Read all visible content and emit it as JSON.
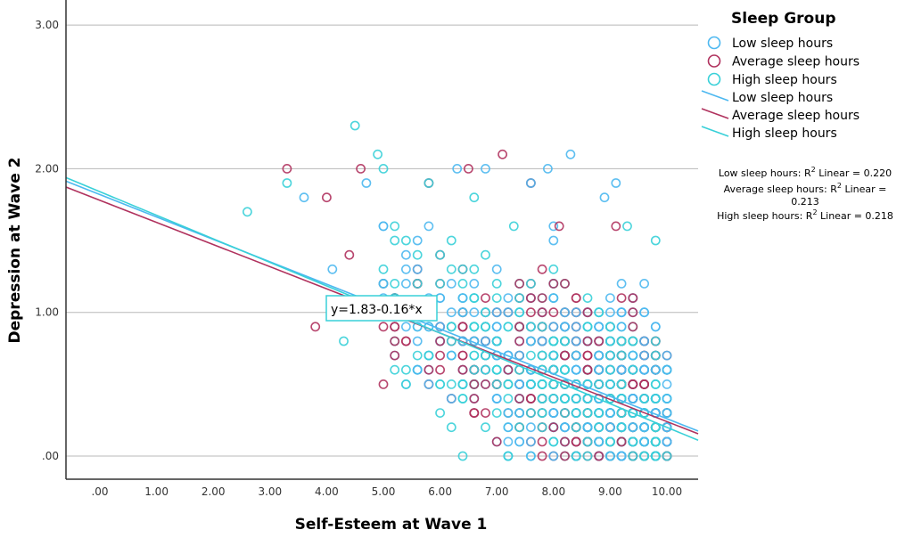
{
  "chart_data": {
    "type": "scatter",
    "title": "",
    "xlabel": "Self-Esteem at Wave 1",
    "ylabel": "Depression at Wave 2",
    "xlim": [
      -0.6,
      10.4
    ],
    "ylim": [
      -0.16,
      3.17
    ],
    "x_ticks": [
      0,
      1,
      2,
      3,
      4,
      5,
      6,
      7,
      8,
      9,
      10
    ],
    "x_tick_labels": [
      ".00",
      "1.00",
      "2.00",
      "3.00",
      "4.00",
      "5.00",
      "6.00",
      "7.00",
      "8.00",
      "9.00",
      "10.00"
    ],
    "y_ticks": [
      0,
      1,
      2,
      3
    ],
    "y_tick_labels": [
      ".00",
      "1.00",
      "2.00",
      "3.00"
    ],
    "grid": "horizontal",
    "legend": {
      "title": "Sleep Group",
      "placement": "right",
      "marker_entries": [
        "Low sleep hours",
        "Average sleep hours",
        "High sleep hours"
      ],
      "line_entries": [
        "Low sleep hours",
        "Average sleep hours",
        "High sleep hours"
      ]
    },
    "series": [
      {
        "name": "Low sleep hours",
        "color": "#4db8f0",
        "fit": {
          "intercept": 1.82,
          "slope": -0.156,
          "r2": 0.22
        },
        "r2_label": [
          "Low sleep hours: R",
          "2",
          " Linear = 0.220"
        ],
        "points_seed": 11,
        "points_count": 520,
        "outliers": [
          [
            3.6,
            1.8
          ],
          [
            4.1,
            1.3
          ],
          [
            4.7,
            1.9
          ],
          [
            5.6,
            1.5
          ],
          [
            6.3,
            2.0
          ],
          [
            6.8,
            2.0
          ],
          [
            7.9,
            2.0
          ],
          [
            8.3,
            2.1
          ],
          [
            9.1,
            1.9
          ],
          [
            8.9,
            1.8
          ],
          [
            7.6,
            1.9
          ]
        ]
      },
      {
        "name": "Average sleep hours",
        "color": "#b0325e",
        "fit": {
          "intercept": 1.78,
          "slope": -0.154,
          "r2": 0.213
        },
        "r2_label": [
          "Average sleep hours: R",
          "2",
          " Linear =",
          "0.213"
        ],
        "points_seed": 23,
        "points_count": 420,
        "outliers": [
          [
            3.3,
            2.0
          ],
          [
            4.0,
            1.8
          ],
          [
            4.6,
            2.0
          ],
          [
            3.8,
            0.9
          ],
          [
            4.4,
            1.4
          ],
          [
            5.8,
            1.9
          ],
          [
            6.5,
            2.0
          ],
          [
            7.1,
            2.1
          ],
          [
            7.6,
            1.9
          ],
          [
            8.1,
            1.6
          ],
          [
            9.1,
            1.6
          ]
        ]
      },
      {
        "name": "High sleep hours",
        "color": "#38d0d8",
        "fit": {
          "intercept": 1.84,
          "slope": -0.164,
          "r2": 0.218
        },
        "r2_label": [
          "High sleep hours: R",
          "2",
          " Linear = 0.218"
        ],
        "points_seed": 37,
        "points_count": 560,
        "outliers": [
          [
            2.6,
            1.7
          ],
          [
            3.3,
            1.9
          ],
          [
            4.5,
            2.3
          ],
          [
            4.9,
            2.1
          ],
          [
            5.0,
            2.0
          ],
          [
            5.8,
            1.9
          ],
          [
            6.6,
            1.8
          ],
          [
            7.3,
            1.6
          ],
          [
            9.3,
            1.6
          ],
          [
            9.8,
            1.5
          ],
          [
            4.3,
            0.8
          ]
        ]
      }
    ],
    "annotation": {
      "text": "y=1.83-0.16*x",
      "near_x": 4.0,
      "near_y": 1.0
    }
  }
}
